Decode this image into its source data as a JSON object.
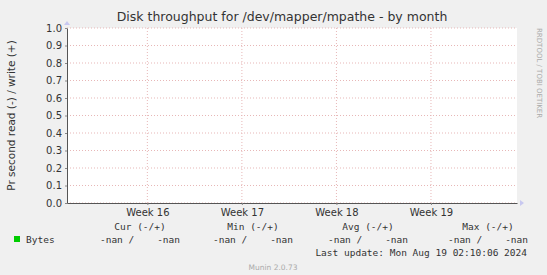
{
  "chart_data": {
    "type": "line",
    "title": "Disk throughput for /dev/mapper/mpathe - by month",
    "y_label": "Pr second read (-) / write (+)",
    "x": [],
    "series": [
      {
        "name": "Bytes",
        "color": "#00cc00",
        "values": []
      }
    ],
    "xlim": [
      15.15,
      19.91
    ],
    "xticks": [
      {
        "value": 16,
        "label": "Week 16"
      },
      {
        "value": 17,
        "label": "Week 17"
      },
      {
        "value": 18,
        "label": "Week 18"
      },
      {
        "value": 19,
        "label": "Week 19"
      }
    ],
    "ylim": [
      0,
      1
    ],
    "yticks": [
      {
        "value": 0,
        "label": "0.0"
      },
      {
        "value": 0.1,
        "label": "0.1"
      },
      {
        "value": 0.2,
        "label": "0.2"
      },
      {
        "value": 0.3,
        "label": "0.3"
      },
      {
        "value": 0.4,
        "label": "0.4"
      },
      {
        "value": 0.5,
        "label": "0.5"
      },
      {
        "value": 0.6,
        "label": "0.6"
      },
      {
        "value": 0.7,
        "label": "0.7"
      },
      {
        "value": 0.8,
        "label": "0.8"
      },
      {
        "value": 0.9,
        "label": "0.9"
      },
      {
        "value": 1,
        "label": "1.0"
      }
    ],
    "grid": true,
    "stats": {
      "headers": [
        "Cur (-/+)",
        "Min (-/+)",
        "Avg (-/+)",
        "Max (-/+)"
      ],
      "values": [
        "-nan /    -nan",
        "-nan /    -nan",
        "-nan /    -nan",
        "-nan /    -nan"
      ]
    },
    "last_update": "Last update: Mon Aug 19 02:10:06 2024",
    "credit": "Munin 2.0.73",
    "side_label": "RRDTOOL / TOBI OETIKER"
  }
}
